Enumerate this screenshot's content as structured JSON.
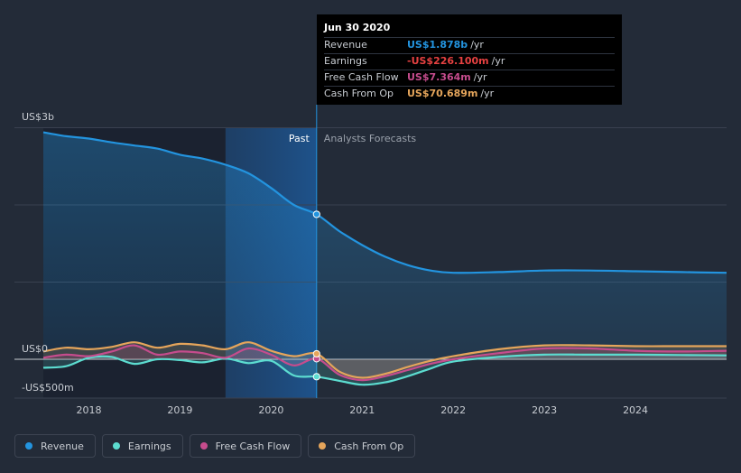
{
  "tooltip": {
    "title": "Jun 30 2020",
    "rows": [
      {
        "label": "Revenue",
        "value": "US$1.878b",
        "unit": "/yr",
        "color": "#2394df"
      },
      {
        "label": "Earnings",
        "value": "-US$226.100m",
        "unit": "/yr",
        "color": "#e64141"
      },
      {
        "label": "Free Cash Flow",
        "value": "US$7.364m",
        "unit": "/yr",
        "color": "#c54c8d"
      },
      {
        "label": "Cash From Op",
        "value": "US$70.689m",
        "unit": "/yr",
        "color": "#e5a55b"
      }
    ]
  },
  "colors": {
    "background": "#232b38",
    "revenue": "#2394df",
    "earnings": "#5cdcd0",
    "free_cash_flow": "#c54c8d",
    "cash_from_op": "#e5a55b"
  },
  "legend": [
    {
      "label": "Revenue",
      "color": "#2394df"
    },
    {
      "label": "Earnings",
      "color": "#5cdcd0"
    },
    {
      "label": "Free Cash Flow",
      "color": "#c54c8d"
    },
    {
      "label": "Cash From Op",
      "color": "#e5a55b"
    }
  ],
  "chart_data": {
    "type": "area",
    "title": "",
    "xlabel": "",
    "ylabel": "",
    "y_tick_labels": [
      "US$3b",
      "US$0",
      "-US$500m"
    ],
    "x_tick_labels": [
      "2018",
      "2019",
      "2020",
      "2021",
      "2022",
      "2023",
      "2024"
    ],
    "ylim": [
      -500,
      3000
    ],
    "xlim": [
      2017.5,
      2025.0
    ],
    "divider_x": 2020.5,
    "past_label": "Past",
    "forecast_label": "Analysts Forecasts",
    "grid": true,
    "series": [
      {
        "name": "Revenue",
        "unit": "US$m",
        "x": [
          2017.5,
          2017.75,
          2018.0,
          2018.25,
          2018.5,
          2018.75,
          2019.0,
          2019.25,
          2019.5,
          2019.75,
          2020.0,
          2020.25,
          2020.5,
          2020.75,
          2021.0,
          2021.25,
          2021.5,
          2021.75,
          2022.0,
          2022.5,
          2023.0,
          2023.5,
          2024.0,
          2024.5,
          2025.0
        ],
        "y": [
          2940,
          2890,
          2860,
          2810,
          2770,
          2730,
          2650,
          2600,
          2520,
          2410,
          2220,
          2000,
          1878,
          1660,
          1480,
          1330,
          1220,
          1150,
          1120,
          1130,
          1150,
          1150,
          1140,
          1130,
          1120
        ]
      },
      {
        "name": "Earnings",
        "unit": "US$m",
        "x": [
          2017.5,
          2017.75,
          2018.0,
          2018.25,
          2018.5,
          2018.75,
          2019.0,
          2019.25,
          2019.5,
          2019.75,
          2020.0,
          2020.25,
          2020.5,
          2020.75,
          2021.0,
          2021.25,
          2021.5,
          2021.75,
          2022.0,
          2022.5,
          2023.0,
          2023.5,
          2024.0,
          2024.5,
          2025.0
        ],
        "y": [
          -110,
          -90,
          20,
          30,
          -60,
          0,
          -10,
          -40,
          10,
          -50,
          -20,
          -210,
          -226,
          -280,
          -330,
          -300,
          -220,
          -120,
          -30,
          30,
          60,
          60,
          60,
          55,
          50
        ]
      },
      {
        "name": "Free Cash Flow",
        "unit": "US$m",
        "x": [
          2017.5,
          2017.75,
          2018.0,
          2018.25,
          2018.5,
          2018.75,
          2019.0,
          2019.25,
          2019.5,
          2019.75,
          2020.0,
          2020.25,
          2020.5,
          2020.75,
          2021.0,
          2021.25,
          2021.5,
          2021.75,
          2022.0,
          2022.5,
          2023.0,
          2023.5,
          2024.0,
          2024.5,
          2025.0
        ],
        "y": [
          20,
          60,
          40,
          100,
          180,
          60,
          100,
          80,
          20,
          140,
          60,
          -80,
          7,
          -200,
          -270,
          -220,
          -140,
          -60,
          0,
          80,
          140,
          140,
          110,
          100,
          110
        ]
      },
      {
        "name": "Cash From Op",
        "unit": "US$m",
        "x": [
          2017.5,
          2017.75,
          2018.0,
          2018.25,
          2018.5,
          2018.75,
          2019.0,
          2019.25,
          2019.5,
          2019.75,
          2020.0,
          2020.25,
          2020.5,
          2020.75,
          2021.0,
          2021.25,
          2021.5,
          2021.75,
          2022.0,
          2022.5,
          2023.0,
          2023.5,
          2024.0,
          2024.5,
          2025.0
        ],
        "y": [
          100,
          150,
          130,
          160,
          220,
          150,
          200,
          180,
          130,
          220,
          110,
          40,
          71,
          -160,
          -240,
          -190,
          -100,
          -20,
          40,
          130,
          180,
          180,
          170,
          170,
          170
        ]
      }
    ]
  }
}
